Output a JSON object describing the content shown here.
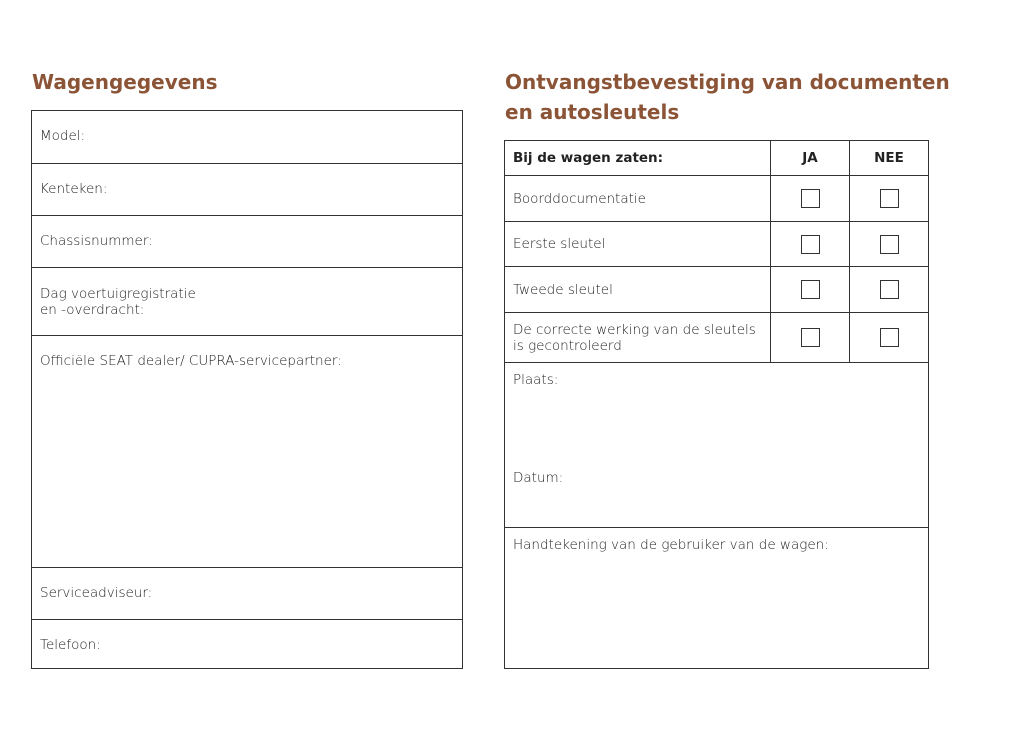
{
  "left": {
    "title": "Wagengegevens",
    "fields": [
      "Model:",
      "Kenteken:",
      "Chassisnummer:",
      "Dag voertuigregistratie\nen -overdracht:",
      "Officiële SEAT dealer/ CUPRA-servicepartner:",
      "Serviceadviseur:",
      "Telefoon:"
    ]
  },
  "right": {
    "title": "Ontvangstbevestiging van documenten\nen autosleutels",
    "header": {
      "label": "Bij de wagen zaten:",
      "yes": "JA",
      "no": "NEE"
    },
    "items": [
      "Boorddocumentatie",
      "Eerste sleutel",
      "Tweede sleutel",
      "De correcte werking van de sleutels\nis gecontroleerd"
    ],
    "place": "Plaats:",
    "date": "Datum:",
    "signature": "Handtekening van de gebruiker van de wagen:"
  },
  "colors": {
    "heading": "#8b5436",
    "border": "#333333"
  }
}
